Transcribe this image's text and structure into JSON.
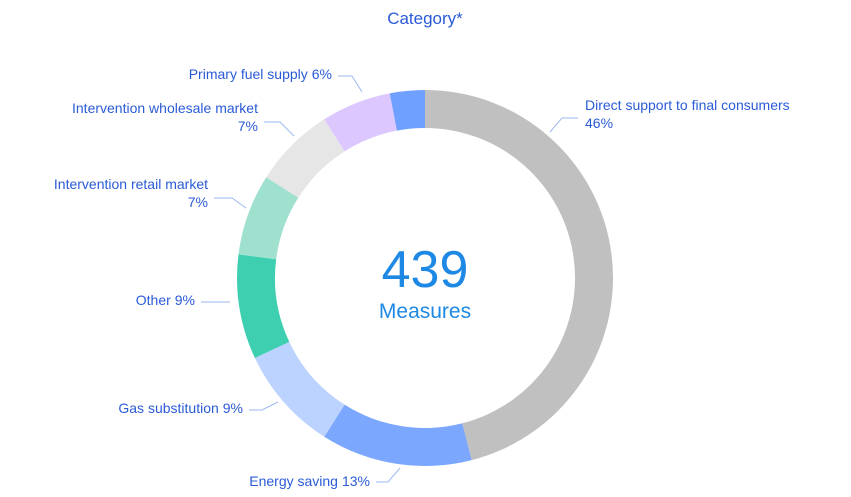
{
  "chart_data": {
    "type": "donut",
    "title": "Category*",
    "categories": [
      "Direct support to final consumers",
      "Energy saving",
      "Gas substitution",
      "Other",
      "Intervention retail market",
      "Intervention wholesale market",
      "Primary fuel supply",
      null
    ],
    "values": [
      46,
      13,
      9,
      9,
      7,
      7,
      6,
      3
    ],
    "value_labels": [
      "46%",
      "13%",
      "9%",
      "9%",
      "7%",
      "7%",
      "6%",
      null
    ],
    "colors": [
      "#c0c0c0",
      "#7ba7ff",
      "#bdd3ff",
      "#3ecfb0",
      "#a0e0cf",
      "#e6e6e6",
      "#dcc8ff",
      "#6fa0ff"
    ],
    "center_value": 439,
    "center_label": "Measures"
  }
}
